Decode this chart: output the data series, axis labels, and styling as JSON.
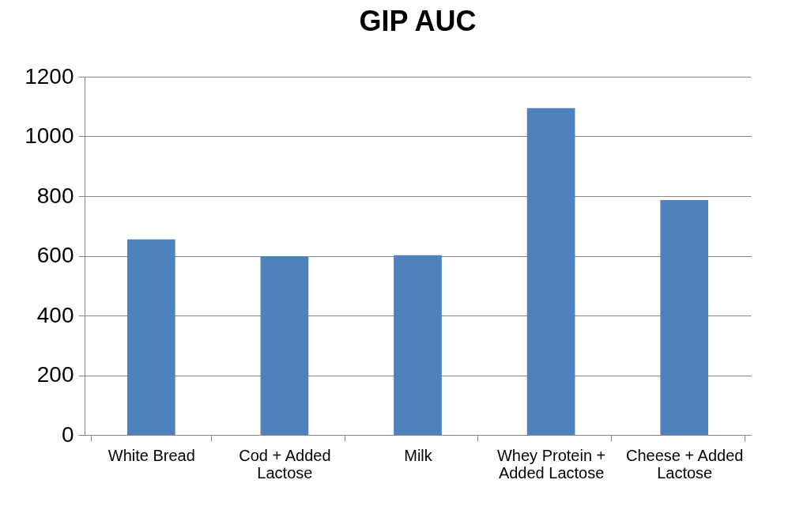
{
  "chart_data": {
    "type": "bar",
    "title": "GIP AUC",
    "categories": [
      "White Bread",
      "Cod + Added Lactose",
      "Milk",
      "Whey Protein + Added Lactose",
      "Cheese + Added Lactose"
    ],
    "values": [
      655,
      598,
      602,
      1095,
      787
    ],
    "color": "#4f81bd",
    "ylim": [
      0,
      1200
    ],
    "yticks": [
      0,
      200,
      400,
      600,
      800,
      1000,
      1200
    ],
    "grid": "y"
  }
}
